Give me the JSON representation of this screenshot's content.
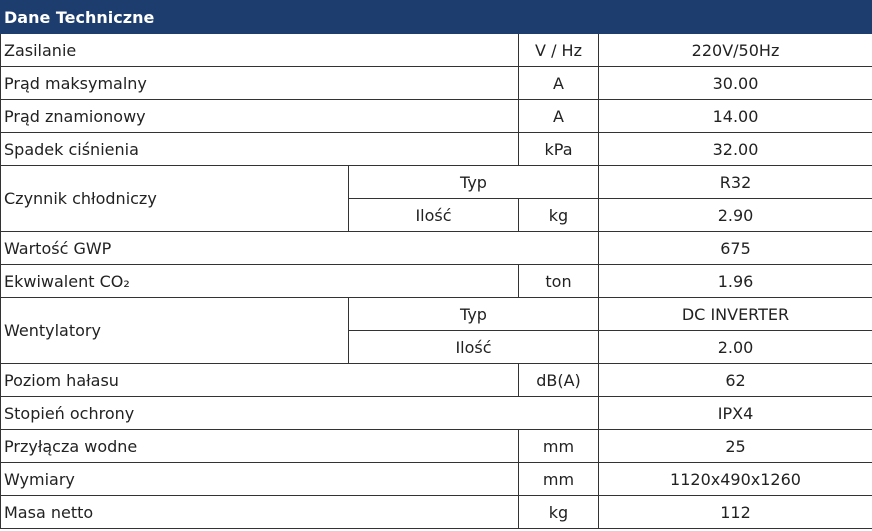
{
  "header": {
    "title": "Dane Techniczne"
  },
  "table": {
    "rows": [
      {
        "label": "Zasilanie",
        "unit": "V / Hz",
        "value": "220V/50Hz"
      },
      {
        "label": "Prąd maksymalny",
        "unit": "A",
        "value": "30.00"
      },
      {
        "label": "Prąd znamionowy",
        "unit": "A",
        "value": "14.00"
      },
      {
        "label": "Spadek ciśnienia",
        "unit": "kPa",
        "value": "32.00"
      },
      {
        "label": "Czynnik chłodniczy",
        "sub": [
          {
            "name": "Typ",
            "value": "R32"
          },
          {
            "name": "Ilość",
            "unit": "kg",
            "value": "2.90"
          }
        ]
      },
      {
        "label": "Wartość GWP",
        "value": "675"
      },
      {
        "label": "Ekwiwalent CO₂",
        "unit": "ton",
        "value": "1.96"
      },
      {
        "label": "Wentylatory",
        "sub": [
          {
            "name": "Typ",
            "value": "DC INVERTER"
          },
          {
            "name": "Ilość",
            "value": "2.00"
          }
        ]
      },
      {
        "label": "Poziom hałasu",
        "unit": "dB(A)",
        "value": "62"
      },
      {
        "label": "Stopień ochrony",
        "value": "IPX4"
      },
      {
        "label": "Przyłącza wodne",
        "unit": "mm",
        "value": "25"
      },
      {
        "label": "Wymiary",
        "unit": "mm",
        "value": "1120x490x1260"
      },
      {
        "label": "Masa netto",
        "unit": "kg",
        "value": "112"
      }
    ]
  }
}
